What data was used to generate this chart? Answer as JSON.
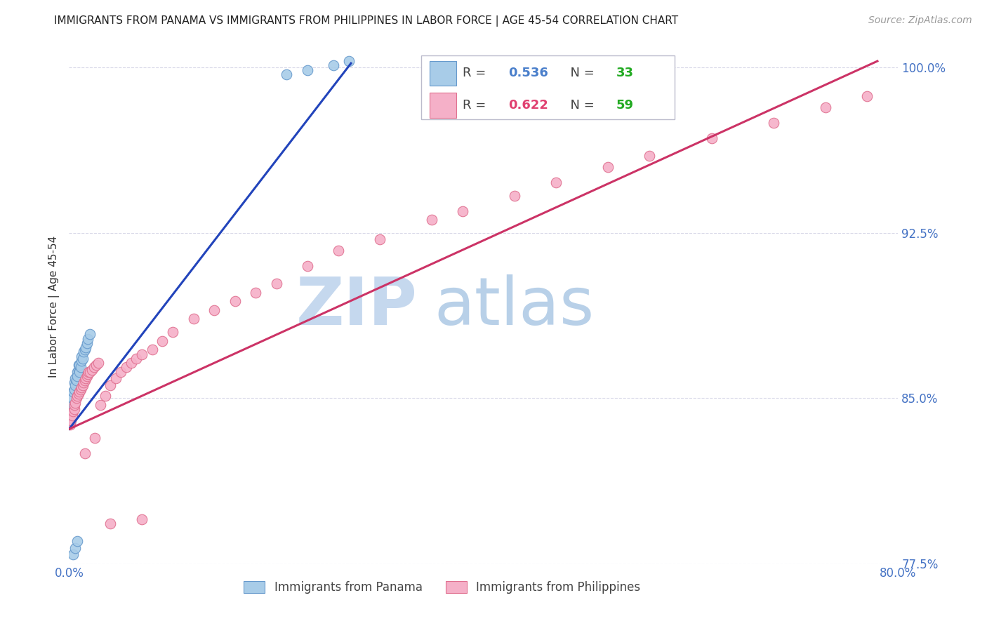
{
  "title": "IMMIGRANTS FROM PANAMA VS IMMIGRANTS FROM PHILIPPINES IN LABOR FORCE | AGE 45-54 CORRELATION CHART",
  "source": "Source: ZipAtlas.com",
  "ylabel": "In Labor Force | Age 45-54",
  "title_fontsize": 11,
  "source_fontsize": 10,
  "ylabel_fontsize": 11,
  "background_color": "#ffffff",
  "grid_color": "#d8d8e8",
  "xlim": [
    0.0,
    0.8
  ],
  "ylim": [
    0.775,
    1.008
  ],
  "ytick_right_vals": [
    1.0,
    0.925,
    0.85,
    0.775
  ],
  "ytick_right_labels": [
    "100.0%",
    "92.5%",
    "85.0%",
    "77.5%"
  ],
  "ytick_grid_vals": [
    1.0,
    0.925,
    0.85,
    0.775
  ],
  "panama_color": "#a8cce8",
  "panama_edge_color": "#6699cc",
  "philippines_color": "#f5b0c8",
  "philippines_edge_color": "#e07090",
  "panama_R": "0.536",
  "panama_N": "33",
  "philippines_R": "0.622",
  "philippines_N": "59",
  "legend_R_color": "#4a7fcb",
  "legend_N_color": "#22aa22",
  "legend_philippines_R_color": "#e04070",
  "legend_philippines_N_color": "#22aa22",
  "panama_scatter_x": [
    0.001,
    0.002,
    0.003,
    0.003,
    0.004,
    0.005,
    0.005,
    0.006,
    0.006,
    0.007,
    0.008,
    0.008,
    0.009,
    0.009,
    0.01,
    0.01,
    0.011,
    0.012,
    0.012,
    0.013,
    0.014,
    0.015,
    0.016,
    0.017,
    0.018,
    0.02,
    0.004,
    0.006,
    0.008,
    0.21,
    0.23,
    0.255,
    0.27
  ],
  "panama_scatter_y": [
    0.839,
    0.844,
    0.847,
    0.85,
    0.853,
    0.854,
    0.857,
    0.856,
    0.859,
    0.858,
    0.862,
    0.86,
    0.863,
    0.865,
    0.862,
    0.865,
    0.864,
    0.867,
    0.869,
    0.868,
    0.871,
    0.872,
    0.873,
    0.875,
    0.877,
    0.879,
    0.779,
    0.782,
    0.785,
    0.997,
    0.999,
    1.001,
    1.003
  ],
  "philippines_scatter_x": [
    0.001,
    0.002,
    0.003,
    0.004,
    0.005,
    0.005,
    0.006,
    0.007,
    0.008,
    0.009,
    0.01,
    0.011,
    0.012,
    0.013,
    0.014,
    0.015,
    0.016,
    0.017,
    0.018,
    0.019,
    0.02,
    0.022,
    0.024,
    0.026,
    0.028,
    0.03,
    0.035,
    0.04,
    0.045,
    0.05,
    0.055,
    0.06,
    0.065,
    0.07,
    0.08,
    0.09,
    0.1,
    0.12,
    0.14,
    0.16,
    0.18,
    0.2,
    0.23,
    0.26,
    0.3,
    0.35,
    0.38,
    0.43,
    0.47,
    0.52,
    0.56,
    0.62,
    0.68,
    0.73,
    0.77,
    0.015,
    0.025,
    0.04,
    0.07
  ],
  "philippines_scatter_y": [
    0.838,
    0.84,
    0.842,
    0.844,
    0.845,
    0.847,
    0.848,
    0.85,
    0.851,
    0.852,
    0.853,
    0.854,
    0.855,
    0.856,
    0.857,
    0.858,
    0.859,
    0.86,
    0.861,
    0.862,
    0.862,
    0.863,
    0.864,
    0.865,
    0.866,
    0.847,
    0.851,
    0.856,
    0.859,
    0.862,
    0.864,
    0.866,
    0.868,
    0.87,
    0.872,
    0.876,
    0.88,
    0.886,
    0.89,
    0.894,
    0.898,
    0.902,
    0.91,
    0.917,
    0.922,
    0.931,
    0.935,
    0.942,
    0.948,
    0.955,
    0.96,
    0.968,
    0.975,
    0.982,
    0.987,
    0.825,
    0.832,
    0.793,
    0.795
  ],
  "panama_line_x": [
    0.0,
    0.272
  ],
  "panama_line_y": [
    0.836,
    1.002
  ],
  "panama_line_color": "#2244bb",
  "philippines_line_x": [
    0.0,
    0.78
  ],
  "philippines_line_y": [
    0.836,
    1.003
  ],
  "philippines_line_color": "#cc3366",
  "watermark_zip_color": "#c5d8ee",
  "watermark_atlas_color": "#b8d0e8"
}
